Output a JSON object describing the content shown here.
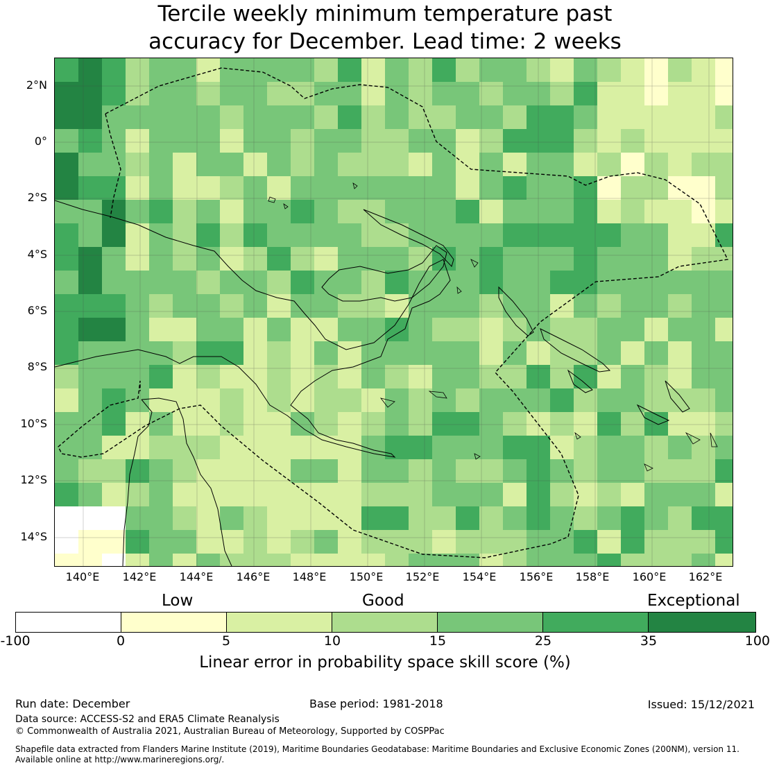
{
  "title_line1": "Tercile weekly minimum temperature past",
  "title_line2": "accuracy for December. Lead time: 2 weeks",
  "map": {
    "lat_labels": [
      "2°N",
      "0°",
      "2°S",
      "4°S",
      "6°S",
      "8°S",
      "10°S",
      "12°S",
      "14°S"
    ],
    "lon_labels": [
      "140°E",
      "142°E",
      "144°E",
      "146°E",
      "148°E",
      "150°E",
      "152°E",
      "154°E",
      "156°E",
      "158°E",
      "160°E",
      "162°E"
    ]
  },
  "colorbar": {
    "categories": [
      "Low",
      "Good",
      "Exceptional"
    ],
    "ticks": [
      "-100",
      "0",
      "5",
      "10",
      "15",
      "25",
      "35",
      "100"
    ],
    "colors": [
      "#ffffff",
      "#ffffcc",
      "#d9f0a3",
      "#addd8e",
      "#78c679",
      "#41ab5d",
      "#238443"
    ],
    "title": "Linear error in probability space skill score (%)"
  },
  "footer": {
    "run_date": "Run date: December",
    "base_period": "Base period: 1981-2018",
    "issued": "Issued: 15/12/2021",
    "data_source": "Data source: ACCESS-S2 and ERA5 Climate Reanalysis",
    "copyright": "© Commonwealth of Australia 2021, Australian Bureau of Meteorology, Supported by COSPPac",
    "shapefile_line1": "Shapefile data extracted from Flanders Marine Institute (2019), Maritime Boundaries Geodatabase: Maritime Boundaries and Exclusive Economic Zones (200NM), version 11.",
    "shapefile_line2": "Available online at http://www.marineregions.org/."
  }
}
